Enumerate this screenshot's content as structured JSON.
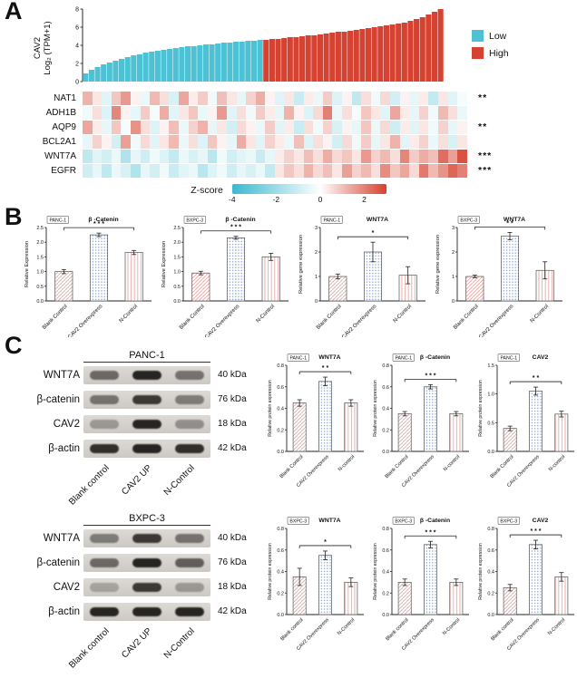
{
  "panel_a": {
    "label": "A",
    "waterfall": {
      "ylabel_line1": "CAV2",
      "ylabel_line2": "Log₂ (TPM+1)",
      "yticks": [
        0,
        2,
        4,
        6,
        8
      ],
      "ylim": [
        0,
        8
      ],
      "split_index": 30,
      "low_color": "#4dc2d4",
      "high_color": "#d64231",
      "values": [
        0.9,
        1.3,
        1.6,
        1.9,
        2.1,
        2.3,
        2.5,
        2.7,
        2.9,
        3.0,
        3.2,
        3.3,
        3.4,
        3.5,
        3.6,
        3.7,
        3.8,
        3.9,
        3.9,
        4.0,
        4.1,
        4.1,
        4.2,
        4.3,
        4.3,
        4.4,
        4.4,
        4.5,
        4.5,
        4.6,
        4.6,
        4.7,
        4.7,
        4.8,
        4.9,
        4.9,
        5.0,
        5.1,
        5.1,
        5.2,
        5.3,
        5.4,
        5.5,
        5.5,
        5.6,
        5.7,
        5.8,
        5.9,
        6.0,
        6.1,
        6.2,
        6.3,
        6.4,
        6.5,
        6.7,
        6.9,
        7.1,
        7.4,
        7.7,
        8.0
      ],
      "legend": [
        {
          "label": "Low",
          "color": "#4dc2d4"
        },
        {
          "label": "High",
          "color": "#d64231"
        }
      ]
    },
    "heatmap": {
      "rows": [
        {
          "gene": "NAT1",
          "sig": "**",
          "values": [
            1.2,
            0.4,
            -0.6,
            0.9,
            1.6,
            0.2,
            -0.4,
            1.1,
            0.5,
            -0.8,
            1.4,
            0.3,
            0.8,
            -0.3,
            1.0,
            0.4,
            -0.5,
            0.7,
            1.3,
            0.2,
            -0.6,
            0.4,
            -1.1,
            0.3,
            -0.4,
            0.8,
            -0.7,
            0.2,
            -1.3,
            0.5,
            -0.3,
            0.6,
            -0.9,
            0.2,
            -0.5,
            0.3,
            -1.2,
            0.4,
            -0.6,
            -0.2
          ]
        },
        {
          "gene": "ADH1B",
          "sig": "",
          "values": [
            -0.3,
            0.5,
            -0.7,
            1.9,
            0.2,
            -0.5,
            0.8,
            -0.2,
            1.3,
            -0.6,
            0.4,
            0.9,
            -0.4,
            0.2,
            1.6,
            -0.6,
            0.5,
            -0.3,
            0.8,
            0.3,
            -0.5,
            1.2,
            0.2,
            -0.7,
            0.6,
            2.0,
            -0.4,
            0.5,
            -0.2,
            0.9,
            0.4,
            -0.6,
            1.4,
            0.3,
            -0.5,
            0.7,
            -0.3,
            1.1,
            0.5,
            -0.4
          ]
        },
        {
          "gene": "AQP9",
          "sig": "**",
          "values": [
            1.4,
            0.3,
            -0.5,
            0.9,
            -0.2,
            1.7,
            0.5,
            -0.7,
            0.2,
            1.0,
            -0.4,
            0.7,
            1.2,
            -0.5,
            0.4,
            -0.9,
            0.6,
            0.2,
            -0.4,
            0.8,
            -0.6,
            0.3,
            -1.1,
            0.5,
            -0.3,
            0.7,
            -0.8,
            0.2,
            -0.5,
            0.9,
            -0.4,
            0.6,
            -1.0,
            0.3,
            -0.6,
            0.4,
            -0.3,
            0.7,
            -0.5,
            0.2
          ]
        },
        {
          "gene": "BCL2A1",
          "sig": "",
          "values": [
            -0.5,
            0.7,
            0.2,
            -0.9,
            1.5,
            -0.3,
            0.6,
            -0.6,
            0.4,
            1.1,
            -0.4,
            0.5,
            -0.7,
            0.9,
            0.2,
            -0.5,
            1.3,
            0.4,
            -0.6,
            0.7,
            0.3,
            -0.4,
            1.0,
            -0.7,
            0.5,
            0.2,
            -0.9,
            0.6,
            -0.3,
            0.8,
            -0.5,
            0.4,
            1.2,
            -0.6,
            0.3,
            0.7,
            -0.4,
            0.5,
            -0.8,
            0.4
          ]
        },
        {
          "gene": "WNT7A",
          "sig": "***",
          "values": [
            -1.3,
            -0.6,
            -0.9,
            -0.4,
            -1.6,
            -0.5,
            -1.0,
            -0.3,
            -0.7,
            -1.2,
            -0.4,
            -0.8,
            -0.5,
            -1.4,
            -0.3,
            -0.9,
            -0.6,
            -0.4,
            -1.1,
            -0.5,
            0.3,
            0.7,
            0.4,
            1.0,
            0.5,
            1.3,
            0.6,
            0.9,
            0.4,
            1.6,
            0.7,
            1.1,
            0.5,
            1.9,
            0.8,
            1.3,
            1.0,
            2.3,
            1.5,
            2.7
          ]
        },
        {
          "gene": "EGFR",
          "sig": "***",
          "values": [
            -1.0,
            -0.5,
            -1.3,
            -0.4,
            -0.8,
            -1.6,
            -0.5,
            -0.9,
            -0.3,
            -1.1,
            -0.6,
            -0.4,
            -1.4,
            -0.7,
            -0.3,
            -1.0,
            -0.5,
            -0.8,
            -0.4,
            -1.2,
            0.4,
            0.9,
            0.5,
            1.2,
            0.6,
            1.0,
            0.4,
            1.5,
            0.7,
            1.1,
            0.5,
            1.8,
            0.9,
            1.4,
            0.6,
            2.1,
            1.1,
            1.7,
            2.4,
            2.0
          ]
        }
      ]
    },
    "colorbar": {
      "label": "Z-score",
      "ticks": [
        -4,
        -2,
        0,
        2
      ],
      "min": -4,
      "max": 3,
      "low_color": "#39b9cf",
      "high_color": "#d6402d"
    }
  },
  "panel_b": {
    "label": "B",
    "charts": [
      {
        "cell_line": "PANC-1",
        "title": "β -Catenin",
        "ylabel": "Relative Expression",
        "categories": [
          "Blank Control",
          "CAV2 Overexpress",
          "N-Control"
        ],
        "values": [
          1.0,
          2.25,
          1.65
        ],
        "errors": [
          0.07,
          0.06,
          0.07
        ],
        "sig": "* * *",
        "ylim": [
          0,
          2.5
        ],
        "yticks": [
          "0.0",
          "0.5",
          "1.0",
          "1.5",
          "2.0",
          "2.5"
        ]
      },
      {
        "cell_line": "BXPC-3",
        "title": "β -Catenin",
        "ylabel": "Relative Expression",
        "categories": [
          "Blank Control",
          "CAV2 Overexpress",
          "N-Control"
        ],
        "values": [
          0.95,
          2.15,
          1.5
        ],
        "errors": [
          0.06,
          0.05,
          0.12
        ],
        "sig": "* * *",
        "ylim": [
          0,
          2.5
        ],
        "yticks": [
          "0.0",
          "0.5",
          "1.0",
          "1.5",
          "2.0",
          "2.5"
        ]
      },
      {
        "cell_line": "PANC-1",
        "title": "WNT7A",
        "ylabel": "Relative gene expression",
        "categories": [
          "Blank Control",
          "CAV2 Overexpress",
          "N-Control"
        ],
        "values": [
          1.0,
          2.0,
          1.05
        ],
        "errors": [
          0.1,
          0.4,
          0.35
        ],
        "sig": "*",
        "ylim": [
          0,
          3
        ],
        "yticks": [
          "0",
          "1",
          "2",
          "3"
        ]
      },
      {
        "cell_line": "BXPC-3",
        "title": "WNT7A",
        "ylabel": "Relative gene expression",
        "categories": [
          "Blank Control",
          "CAV2 Overexpress",
          "N-Control"
        ],
        "values": [
          1.0,
          2.65,
          1.25
        ],
        "errors": [
          0.05,
          0.15,
          0.35
        ],
        "sig": "* *",
        "ylim": [
          0,
          3
        ],
        "yticks": [
          "0",
          "1",
          "2",
          "3"
        ]
      }
    ]
  },
  "panel_c": {
    "label": "C",
    "blots": [
      {
        "cell_line": "PANC-1",
        "rows": [
          {
            "protein": "WNT7A",
            "kda": "40 kDa",
            "bands": [
              0.55,
              0.9,
              0.5
            ]
          },
          {
            "protein": "β-catenin",
            "kda": "76 kDa",
            "bands": [
              0.5,
              0.8,
              0.45
            ]
          },
          {
            "protein": "CAV2",
            "kda": "18 kDa",
            "bands": [
              0.3,
              0.9,
              0.35
            ]
          },
          {
            "protein": "β-actin",
            "kda": "42 kDa",
            "bands": [
              0.85,
              0.9,
              0.85
            ]
          }
        ],
        "lanes": [
          "Blank control",
          "CAV2 UP",
          "N-Control"
        ]
      },
      {
        "cell_line": "BXPC-3",
        "rows": [
          {
            "protein": "WNT7A",
            "kda": "40 kDa",
            "bands": [
              0.45,
              0.8,
              0.5
            ]
          },
          {
            "protein": "β-catenin",
            "kda": "76 kDa",
            "bands": [
              0.55,
              0.9,
              0.6
            ]
          },
          {
            "protein": "CAV2",
            "kda": "18 kDa",
            "bands": [
              0.25,
              0.8,
              0.3
            ]
          },
          {
            "protein": "β-actin",
            "kda": "42 kDa",
            "bands": [
              0.9,
              0.9,
              0.9
            ]
          }
        ],
        "lanes": [
          "Blank control",
          "CAV2 UP",
          "N-Control"
        ]
      }
    ],
    "charts": [
      {
        "cell_line": "PANC-1",
        "title": "WNT7A",
        "ylabel": "Relative protein expression",
        "categories": [
          "Blank Control",
          "CAV2 Overexpress",
          "N-control"
        ],
        "values": [
          0.45,
          0.65,
          0.45
        ],
        "errors": [
          0.03,
          0.04,
          0.03
        ],
        "sig": "* *",
        "ylim": [
          0,
          0.8
        ],
        "yticks": [
          "0.0",
          "0.2",
          "0.4",
          "0.6",
          "0.8"
        ]
      },
      {
        "cell_line": "PANC-1",
        "title": "β -Catenin",
        "ylabel": "Relative protein expression",
        "categories": [
          "Blank Control",
          "CAV2 Overexpress",
          "N-control"
        ],
        "values": [
          0.35,
          0.6,
          0.35
        ],
        "errors": [
          0.02,
          0.02,
          0.02
        ],
        "sig": "* * *",
        "ylim": [
          0,
          0.8
        ],
        "yticks": [
          "0.0",
          "0.2",
          "0.4",
          "0.6",
          "0.8"
        ]
      },
      {
        "cell_line": "PANC-1",
        "title": "CAV2",
        "ylabel": "Relative protein expression",
        "categories": [
          "Blank Control",
          "CAV2 Overexpress",
          "N-control"
        ],
        "values": [
          0.4,
          1.05,
          0.65
        ],
        "errors": [
          0.04,
          0.07,
          0.05
        ],
        "sig": "* *",
        "ylim": [
          0,
          1.5
        ],
        "yticks": [
          "0.0",
          "0.5",
          "1.0",
          "1.5"
        ]
      },
      {
        "cell_line": "BXPC-3",
        "title": "WNT7A",
        "ylabel": "Relative protein expression",
        "categories": [
          "Blank control",
          "CAV2 Overexpress",
          "N-Control"
        ],
        "values": [
          0.35,
          0.55,
          0.3
        ],
        "errors": [
          0.08,
          0.04,
          0.04
        ],
        "sig": "*",
        "ylim": [
          0,
          0.8
        ],
        "yticks": [
          "0.0",
          "0.2",
          "0.4",
          "0.6",
          "0.8"
        ]
      },
      {
        "cell_line": "BXPC-3",
        "title": "β -Catenin",
        "ylabel": "Relative protein expression",
        "categories": [
          "Blank control",
          "CAV2 Overexpress",
          "N-Control"
        ],
        "values": [
          0.3,
          0.65,
          0.3
        ],
        "errors": [
          0.03,
          0.03,
          0.03
        ],
        "sig": "* * *",
        "ylim": [
          0,
          0.8
        ],
        "yticks": [
          "0.0",
          "0.2",
          "0.4",
          "0.6",
          "0.8"
        ]
      },
      {
        "cell_line": "BXPC-3",
        "title": "CAV2",
        "ylabel": "Relative protein expression",
        "categories": [
          "Blank control",
          "CAV2 Overexpress",
          "N-Control"
        ],
        "values": [
          0.25,
          0.65,
          0.35
        ],
        "errors": [
          0.03,
          0.04,
          0.04
        ],
        "sig": "* * *",
        "ylim": [
          0,
          0.8
        ],
        "yticks": [
          "0.0",
          "0.2",
          "0.4",
          "0.6",
          "0.8"
        ]
      }
    ]
  }
}
